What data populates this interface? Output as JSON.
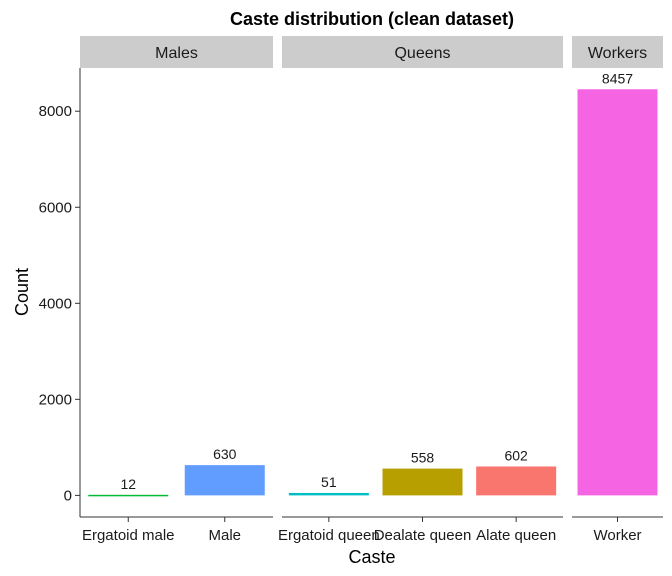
{
  "chart_data": {
    "type": "bar",
    "title": "Caste distribution (clean dataset)",
    "xlabel": "Caste",
    "ylabel": "Count",
    "ylim": [
      -450,
      8900
    ],
    "yticks": [
      0,
      2000,
      4000,
      6000,
      8000
    ],
    "grid": false,
    "legend": "none",
    "facets": [
      {
        "name": "Males",
        "categories": [
          "Ergatoid male",
          "Male"
        ],
        "values": [
          12,
          630
        ],
        "colors": [
          "#00BA38",
          "#619CFF"
        ]
      },
      {
        "name": "Queens",
        "categories": [
          "Ergatoid queen",
          "Dealate queen",
          "Alate queen"
        ],
        "values": [
          51,
          558,
          602
        ],
        "colors": [
          "#00BFC4",
          "#B79F00",
          "#F8766D"
        ]
      },
      {
        "name": "Workers",
        "categories": [
          "Worker"
        ],
        "values": [
          8457
        ],
        "colors": [
          "#F564E3"
        ]
      }
    ],
    "strip_color": "#cccccc"
  }
}
